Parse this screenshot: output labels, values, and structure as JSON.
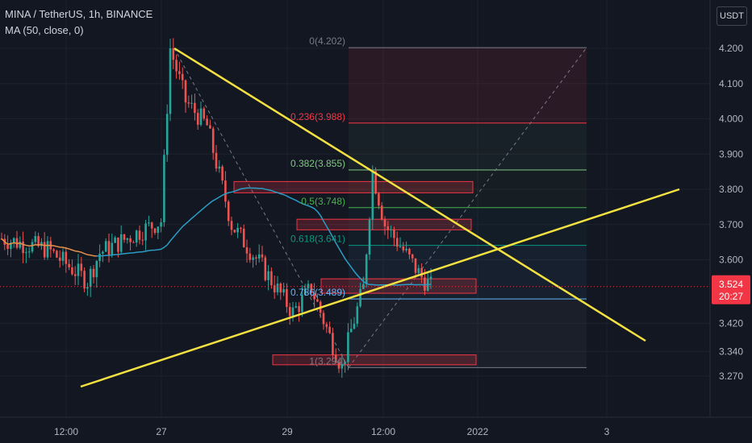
{
  "header": {
    "symbol_line": "MINA / TetherUS, 1h, BINANCE",
    "indicator_line": "MA (50, close, 0)",
    "currency": "USDT"
  },
  "colors": {
    "background": "#131722",
    "grid": "#1e222d",
    "up": "#26a69a",
    "down": "#ef5350",
    "ma": "#2a9dc4",
    "ma_early": "#e8914a",
    "trendline": "#f3e041",
    "price_tag": "#f23645",
    "fib_bg": "#1e2535"
  },
  "chart_data": {
    "type": "candlestick",
    "title": "MINA / TetherUS, 1h, BINANCE",
    "indicator": "MA (50, close, 0)",
    "y_axis": {
      "ticks": [
        4.2,
        4.1,
        4.0,
        3.9,
        3.8,
        3.7,
        3.6,
        3.42,
        3.34,
        3.27
      ],
      "tick_labels": [
        "4.200",
        "4.100",
        "4.000",
        "3.900",
        "3.800",
        "3.700",
        "3.600",
        "3.420",
        "3.340",
        "3.270"
      ],
      "range": [
        3.23,
        4.27
      ]
    },
    "x_axis": {
      "tick_labels": [
        "12:00",
        "27",
        "29",
        "12:00",
        "2022",
        "3"
      ]
    },
    "last_price": {
      "value": "3.524",
      "countdown": "20:27"
    },
    "candles_summary": {
      "start": 3.66,
      "peak": 4.2,
      "low": 3.294,
      "end": 3.524,
      "note_low": "low near 3.294 before 12:00 on 30th"
    },
    "fib_levels": [
      {
        "ratio": "0",
        "price": 4.202,
        "label": "0(4.202)",
        "color": "#787b86"
      },
      {
        "ratio": "0.236",
        "price": 3.988,
        "label": "0.236(3.988)",
        "color": "#f23645"
      },
      {
        "ratio": "0.382",
        "price": 3.855,
        "label": "0.382(3.855)",
        "color": "#81c784"
      },
      {
        "ratio": "0.5",
        "price": 3.748,
        "label": "0.5(3.748)",
        "color": "#4caf50"
      },
      {
        "ratio": "0.618",
        "price": 3.641,
        "label": "0.618(3.641)",
        "color": "#089981"
      },
      {
        "ratio": "0.786",
        "price": 3.489,
        "label": "0.786(3.489)",
        "color": "#64b5f6"
      },
      {
        "ratio": "1",
        "price": 3.294,
        "label": "1(3.294)",
        "color": "#787b86"
      }
    ]
  }
}
